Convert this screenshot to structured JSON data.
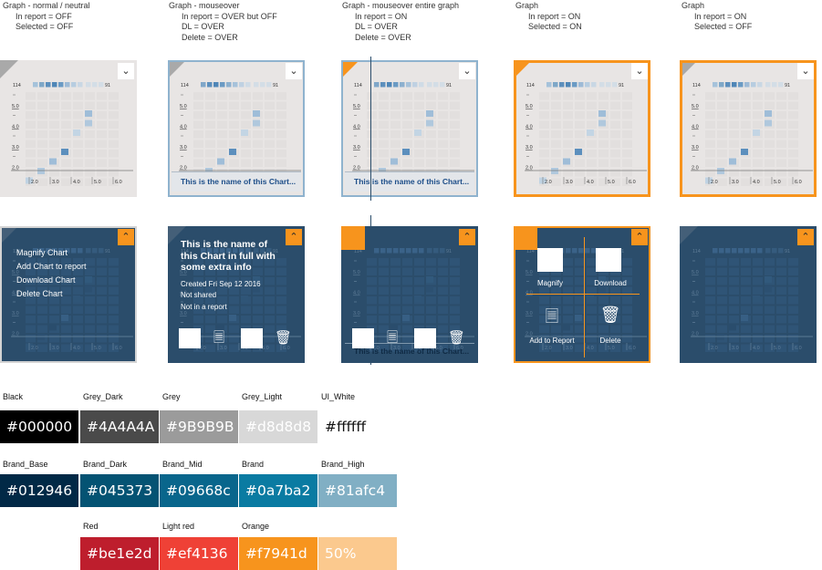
{
  "states": [
    {
      "title": "Graph - normal / neutral",
      "lines": [
        "In report = OFF",
        "Selected = OFF"
      ]
    },
    {
      "title": "Graph - mouseover",
      "lines": [
        "In report = OVER but OFF",
        "DL = OVER",
        "Delete = OVER"
      ]
    },
    {
      "title": "Graph - mouseover entire graph",
      "lines": [
        "In report = ON",
        "DL = OVER",
        "Delete = OVER"
      ]
    },
    {
      "title": "Graph",
      "lines": [
        "In report = ON",
        "Selected = ON"
      ]
    },
    {
      "title": "Graph",
      "lines": [
        "In report = ON",
        "Selected = OFF"
      ]
    }
  ],
  "chart": {
    "legend_min": "114",
    "legend_max": "91",
    "y_ticks": [
      "5.0",
      "4.0",
      "3.0",
      "2.0"
    ],
    "x_ticks": [
      "2.0",
      "3.0",
      "4.0",
      "5.0",
      "6.0"
    ],
    "chart_name": "This is the name of this Chart..."
  },
  "chart_data": {
    "type": "heatmap",
    "x_ticks": [
      2.0,
      3.0,
      4.0,
      5.0,
      6.0
    ],
    "y_ticks": [
      2.0,
      3.0,
      4.0,
      5.0
    ],
    "legend_range": [
      114,
      91
    ]
  },
  "menu": {
    "items": [
      "Magnify Chart",
      "Add Chart to report",
      "Download Chart",
      "Delete Chart"
    ]
  },
  "info": {
    "title": "This is the name of this Chart in full with some extra info",
    "created": "Created Fri Sep 12 2016",
    "shared": "Not shared",
    "report": "Not in a report"
  },
  "quad": {
    "magnify": "Magnify",
    "download": "Download",
    "add_to_report": "Add to Report",
    "delete": "Delete"
  },
  "icons": {
    "expand": "chevron-down-icon",
    "collapse": "chevron-up-icon",
    "report": "notepad-icon",
    "delete": "trash-icon"
  },
  "swatches": {
    "row1": [
      {
        "name": "Black",
        "hex": "#000000",
        "text": "#000000"
      },
      {
        "name": "Grey_Dark",
        "hex": "#4A4A4A",
        "text": "#4A4A4A"
      },
      {
        "name": "Grey",
        "hex": "#9B9B9B",
        "text": "#9B9B9B"
      },
      {
        "name": "Grey_Light",
        "hex": "#d8d8d8",
        "text": "#d8d8d8"
      },
      {
        "name": "UI_White",
        "hex": "#ffffff",
        "text": "#ffffff"
      }
    ],
    "row2": [
      {
        "name": "Brand_Base",
        "hex": "#012946",
        "text": "#012946"
      },
      {
        "name": "Brand_Dark",
        "hex": "#045373",
        "text": "#045373"
      },
      {
        "name": "Brand_Mid",
        "hex": "#09668c",
        "text": "#09668c"
      },
      {
        "name": "Brand",
        "hex": "#0a7ba2",
        "text": "#0a7ba2"
      },
      {
        "name": "Brand_High",
        "hex": "#81afc4",
        "text": "#81afc4"
      }
    ],
    "row3": [
      {
        "name": "Red",
        "hex": "#be1e2d",
        "text": "#be1e2d"
      },
      {
        "name": "Light red",
        "hex": "#ef4136",
        "text": "#ef4136"
      },
      {
        "name": "Orange",
        "hex": "#f7941d",
        "text": "#f7941d"
      },
      {
        "name": "",
        "hex": "#fbc98e",
        "text": "50%"
      }
    ]
  }
}
